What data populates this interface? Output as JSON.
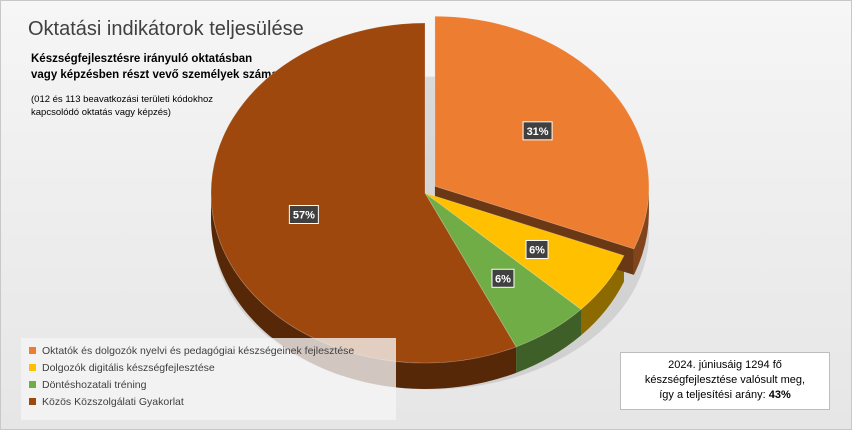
{
  "chart_data": {
    "type": "pie",
    "title": "Oktatási indikátorok teljesülése",
    "subtitle": "Készségfejlesztésre irányuló oktatásban vagy képzésben részt vevő személyek száma",
    "note": "(012 és 113 beavatkozási területi kódokhoz kapcsolódó oktatás vagy képzés)",
    "categories": [
      "Oktatók és dolgozók nyelvi és pedagógiai készségeinek fejlesztése",
      "Dolgozók digitális készségfejlesztése",
      "Döntéshozatali tréning",
      "Közös Közszolgálati Gyakorlat"
    ],
    "values": [
      31,
      6,
      6,
      57
    ],
    "labels": [
      "31%",
      "6%",
      "6%",
      "57%"
    ],
    "colors": [
      "#ED7D31",
      "#FFC000",
      "#70AD47",
      "#9E480E"
    ],
    "exploded": "Oktatók és dolgozók nyelvi és pedagógiai készségeinek fejlesztése",
    "legend_position": "bottom-left"
  },
  "summary": {
    "line1": "2024. júniusáig 1294 fő",
    "line2": "készségfejlesztése valósult meg,",
    "line3_prefix": "így a teljesítési arány: ",
    "line3_value": "43%"
  }
}
